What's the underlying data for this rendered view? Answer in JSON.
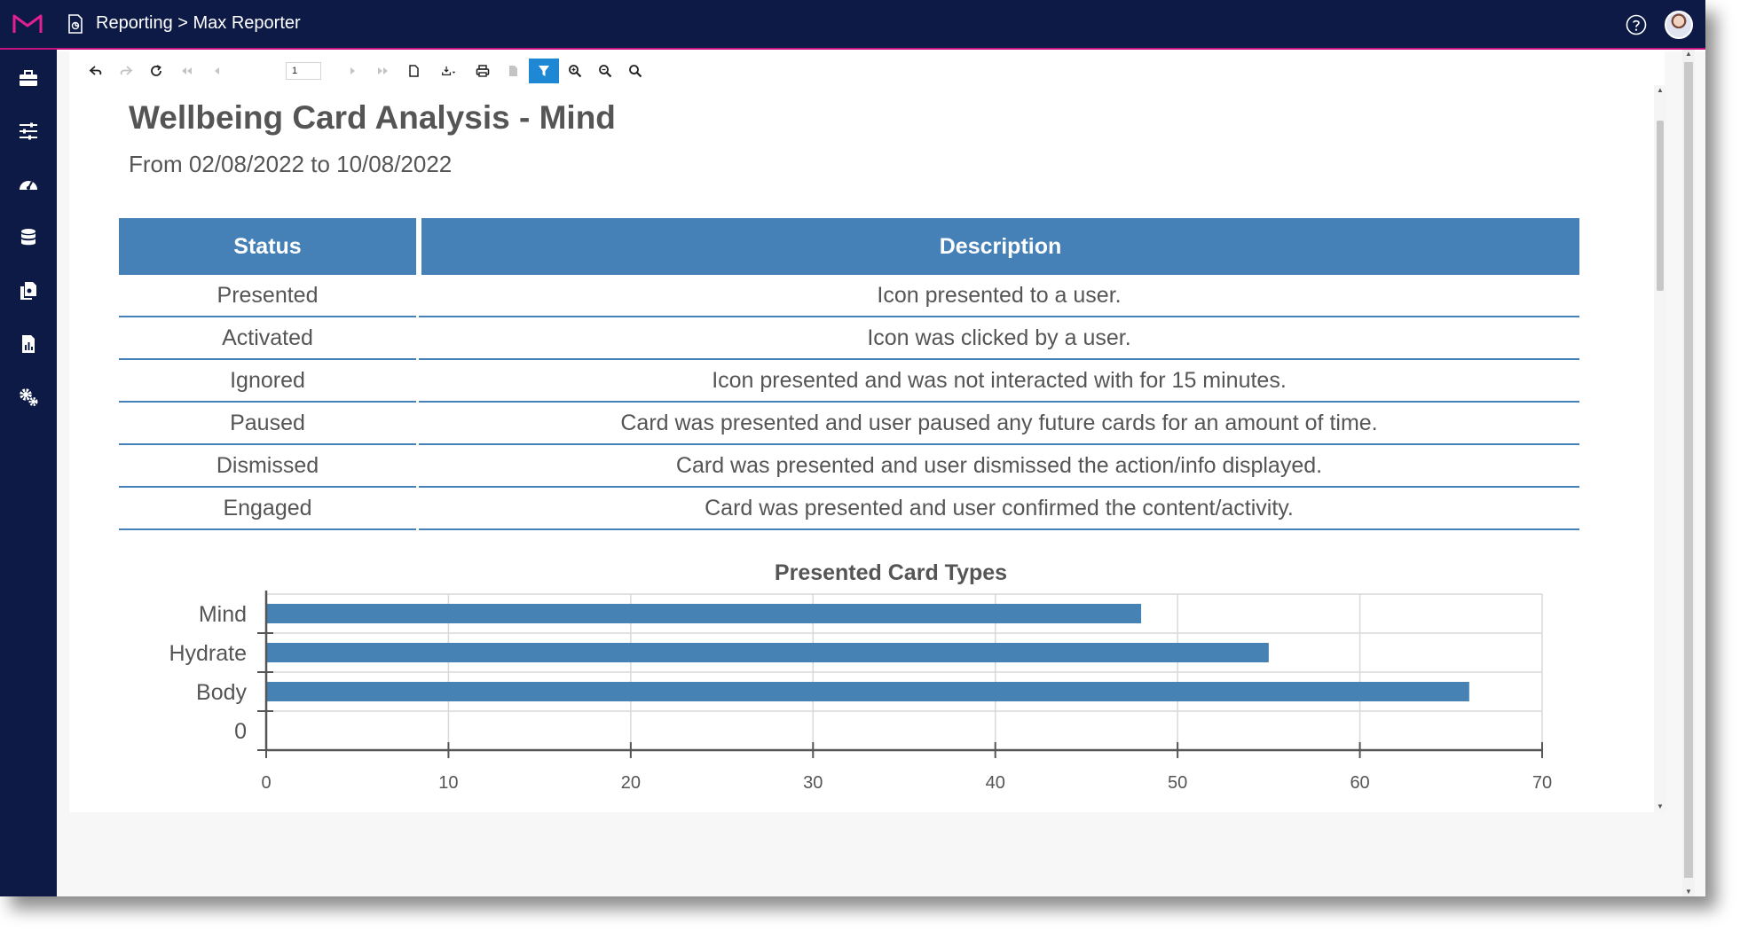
{
  "header": {
    "breadcrumb": "Reporting > Max Reporter"
  },
  "sidebar": {
    "items": [
      {
        "name": "toolbox-icon"
      },
      {
        "name": "sliders-icon"
      },
      {
        "name": "dashboard-gauge-icon"
      },
      {
        "name": "database-icon"
      },
      {
        "name": "documents-icon"
      },
      {
        "name": "report-icon"
      },
      {
        "name": "settings-cogs-icon"
      }
    ]
  },
  "toolbar": {
    "page_number": "1"
  },
  "report": {
    "title": "Wellbeing Card Analysis - Mind",
    "subtitle": "From 02/08/2022 to 10/08/2022",
    "table": {
      "headers": {
        "status": "Status",
        "description": "Description"
      },
      "rows": [
        {
          "status": "Presented",
          "description": "Icon presented to a user."
        },
        {
          "status": "Activated",
          "description": "Icon was clicked by a user."
        },
        {
          "status": "Ignored",
          "description": "Icon presented and was not interacted with for 15 minutes."
        },
        {
          "status": "Paused",
          "description": "Card was presented and user paused any future cards for an amount of time."
        },
        {
          "status": "Dismissed",
          "description": "Card was presented and user dismissed the action/info displayed."
        },
        {
          "status": "Engaged",
          "description": "Card was presented and user confirmed the content/activity."
        }
      ]
    }
  },
  "colors": {
    "topbar": "#0c1a45",
    "accent": "#c2127c",
    "table_header": "#4581b6",
    "bar": "#4682b4",
    "toolbar_active": "#1e88d4"
  },
  "chart_data": {
    "type": "bar",
    "orientation": "horizontal",
    "title": "Presented Card Types",
    "categories": [
      "Mind",
      "Hydrate",
      "Body",
      "0"
    ],
    "values": [
      48,
      55,
      66,
      null
    ],
    "xlim": [
      0,
      70
    ],
    "xticks": [
      "0",
      "10",
      "20",
      "30",
      "40",
      "50",
      "60",
      "70"
    ],
    "grid": true,
    "xlabel": "",
    "ylabel": ""
  }
}
